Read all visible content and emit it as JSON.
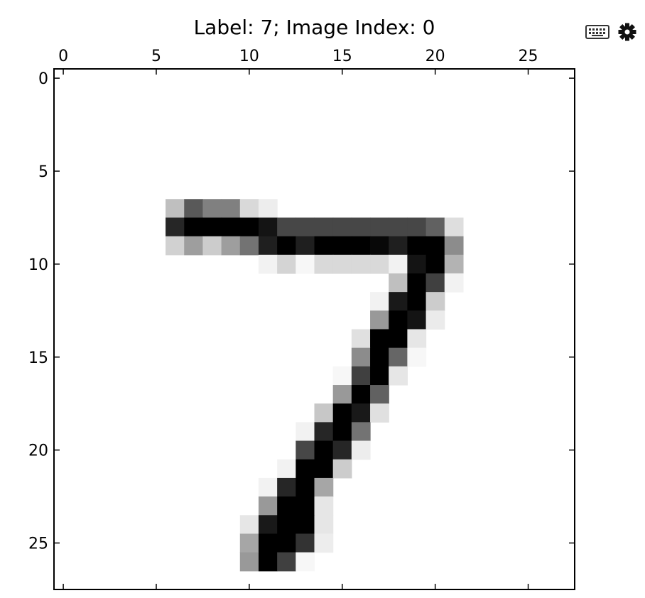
{
  "toolbar": {
    "icons": [
      "keyboard-icon",
      "gear-icon"
    ]
  },
  "chart_data": {
    "type": "heatmap",
    "title": "Label: 7; Image Index: 0",
    "xlabel": "",
    "ylabel": "",
    "colormap": "gray_r",
    "value_range": [
      0,
      1
    ],
    "xlim": [
      -0.5,
      27.5
    ],
    "ylim": [
      27.5,
      -0.5
    ],
    "x_ticks": [
      0,
      5,
      10,
      15,
      20,
      25
    ],
    "y_ticks": [
      0,
      5,
      10,
      15,
      20,
      25
    ],
    "x_tick_position": "top",
    "grid": false,
    "pixels": [
      [
        7,
        6,
        0.25
      ],
      [
        7,
        7,
        0.65
      ],
      [
        7,
        8,
        0.5
      ],
      [
        7,
        9,
        0.5
      ],
      [
        7,
        10,
        0.15
      ],
      [
        7,
        11,
        0.07
      ],
      [
        8,
        6,
        0.85
      ],
      [
        8,
        7,
        1.0
      ],
      [
        8,
        8,
        1.0
      ],
      [
        8,
        9,
        1.0
      ],
      [
        8,
        10,
        1.0
      ],
      [
        8,
        11,
        0.92
      ],
      [
        8,
        12,
        0.72
      ],
      [
        8,
        13,
        0.72
      ],
      [
        8,
        14,
        0.72
      ],
      [
        8,
        15,
        0.72
      ],
      [
        8,
        16,
        0.72
      ],
      [
        8,
        17,
        0.72
      ],
      [
        8,
        18,
        0.72
      ],
      [
        8,
        19,
        0.72
      ],
      [
        8,
        20,
        0.62
      ],
      [
        8,
        21,
        0.13
      ],
      [
        9,
        6,
        0.18
      ],
      [
        9,
        7,
        0.38
      ],
      [
        9,
        8,
        0.2
      ],
      [
        9,
        9,
        0.38
      ],
      [
        9,
        10,
        0.55
      ],
      [
        9,
        11,
        0.88
      ],
      [
        9,
        12,
        1.0
      ],
      [
        9,
        13,
        0.88
      ],
      [
        9,
        14,
        1.0
      ],
      [
        9,
        15,
        1.0
      ],
      [
        9,
        16,
        1.0
      ],
      [
        9,
        17,
        0.97
      ],
      [
        9,
        18,
        0.88
      ],
      [
        9,
        19,
        1.0
      ],
      [
        9,
        20,
        1.0
      ],
      [
        9,
        21,
        0.45
      ],
      [
        10,
        11,
        0.05
      ],
      [
        10,
        12,
        0.17
      ],
      [
        10,
        13,
        0.03
      ],
      [
        10,
        14,
        0.15
      ],
      [
        10,
        15,
        0.15
      ],
      [
        10,
        16,
        0.15
      ],
      [
        10,
        17,
        0.15
      ],
      [
        10,
        18,
        0.05
      ],
      [
        10,
        19,
        0.92
      ],
      [
        10,
        20,
        1.0
      ],
      [
        10,
        21,
        0.3
      ],
      [
        11,
        18,
        0.25
      ],
      [
        11,
        19,
        1.0
      ],
      [
        11,
        20,
        0.75
      ],
      [
        11,
        21,
        0.05
      ],
      [
        12,
        17,
        0.05
      ],
      [
        12,
        18,
        0.9
      ],
      [
        12,
        19,
        1.0
      ],
      [
        12,
        20,
        0.2
      ],
      [
        13,
        17,
        0.4
      ],
      [
        13,
        18,
        1.0
      ],
      [
        13,
        19,
        0.92
      ],
      [
        13,
        20,
        0.08
      ],
      [
        14,
        16,
        0.12
      ],
      [
        14,
        17,
        1.0
      ],
      [
        14,
        18,
        1.0
      ],
      [
        14,
        19,
        0.1
      ],
      [
        15,
        16,
        0.45
      ],
      [
        15,
        17,
        1.0
      ],
      [
        15,
        18,
        0.6
      ],
      [
        15,
        19,
        0.03
      ],
      [
        16,
        15,
        0.03
      ],
      [
        16,
        16,
        0.75
      ],
      [
        16,
        17,
        1.0
      ],
      [
        16,
        18,
        0.1
      ],
      [
        17,
        15,
        0.4
      ],
      [
        17,
        16,
        1.0
      ],
      [
        17,
        17,
        0.62
      ],
      [
        18,
        14,
        0.22
      ],
      [
        18,
        15,
        1.0
      ],
      [
        18,
        16,
        0.9
      ],
      [
        18,
        17,
        0.12
      ],
      [
        19,
        13,
        0.05
      ],
      [
        19,
        14,
        0.85
      ],
      [
        19,
        15,
        1.0
      ],
      [
        19,
        16,
        0.55
      ],
      [
        20,
        13,
        0.72
      ],
      [
        20,
        14,
        1.0
      ],
      [
        20,
        15,
        0.85
      ],
      [
        20,
        16,
        0.07
      ],
      [
        21,
        12,
        0.05
      ],
      [
        21,
        13,
        1.0
      ],
      [
        21,
        14,
        1.0
      ],
      [
        21,
        15,
        0.2
      ],
      [
        22,
        11,
        0.05
      ],
      [
        22,
        12,
        0.85
      ],
      [
        22,
        13,
        1.0
      ],
      [
        22,
        14,
        0.35
      ],
      [
        23,
        11,
        0.4
      ],
      [
        23,
        12,
        1.0
      ],
      [
        23,
        13,
        1.0
      ],
      [
        23,
        14,
        0.1
      ],
      [
        24,
        10,
        0.1
      ],
      [
        24,
        11,
        0.9
      ],
      [
        24,
        12,
        1.0
      ],
      [
        24,
        13,
        1.0
      ],
      [
        24,
        14,
        0.1
      ],
      [
        25,
        10,
        0.35
      ],
      [
        25,
        11,
        1.0
      ],
      [
        25,
        12,
        1.0
      ],
      [
        25,
        13,
        0.8
      ],
      [
        25,
        14,
        0.07
      ],
      [
        26,
        10,
        0.4
      ],
      [
        26,
        11,
        1.0
      ],
      [
        26,
        12,
        0.75
      ],
      [
        26,
        13,
        0.03
      ]
    ]
  }
}
